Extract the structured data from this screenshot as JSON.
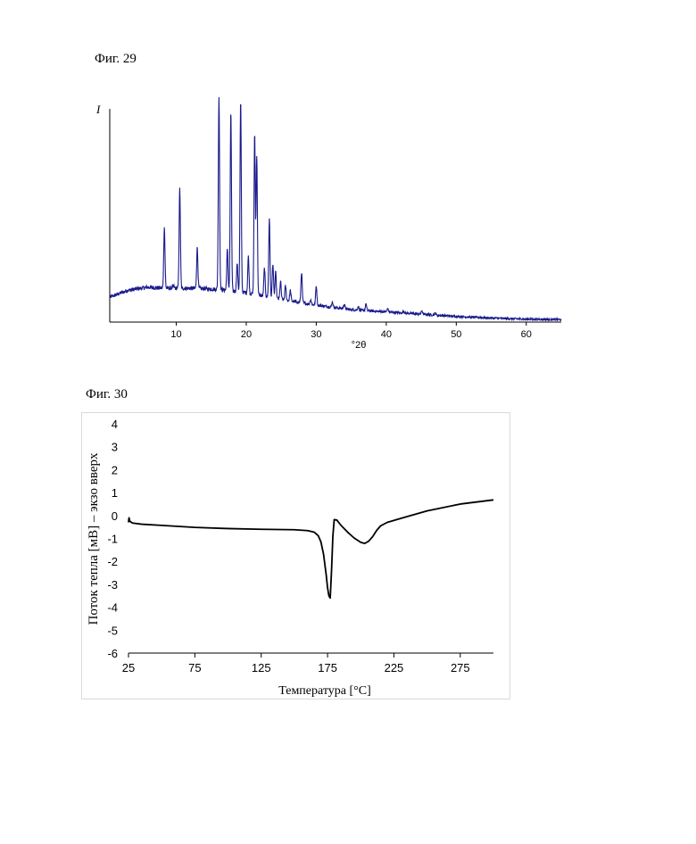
{
  "figures": {
    "fig29": {
      "title": "Фиг. 29"
    },
    "fig30": {
      "title": "Фиг. 30"
    }
  },
  "chart_data": [
    {
      "type": "line",
      "title": "",
      "xlabel": "°2θ",
      "ylabel": "I",
      "xlim": [
        0.5,
        65
      ],
      "ylim": [
        0,
        100
      ],
      "x_ticks": [
        10,
        20,
        30,
        40,
        50,
        60
      ],
      "y_ticks": [],
      "grid": false,
      "color": "#1a1a8c",
      "background": [
        [
          0.5,
          11
        ],
        [
          3,
          14
        ],
        [
          6,
          15.5
        ],
        [
          8,
          15
        ],
        [
          12,
          15
        ],
        [
          16,
          14.5
        ],
        [
          20,
          13
        ],
        [
          25,
          10
        ],
        [
          30,
          7.5
        ],
        [
          35,
          5.5
        ],
        [
          40,
          4.5
        ],
        [
          45,
          3.5
        ],
        [
          50,
          2.5
        ],
        [
          55,
          1.8
        ],
        [
          60,
          1.3
        ],
        [
          65,
          1.1
        ]
      ],
      "peaks": [
        {
          "x": 8.3,
          "y": 42
        },
        {
          "x": 9.6,
          "y": 16
        },
        {
          "x": 10.5,
          "y": 59
        },
        {
          "x": 13.0,
          "y": 33
        },
        {
          "x": 14.0,
          "y": 15
        },
        {
          "x": 16.1,
          "y": 100
        },
        {
          "x": 17.3,
          "y": 32
        },
        {
          "x": 17.8,
          "y": 93
        },
        {
          "x": 18.7,
          "y": 26
        },
        {
          "x": 19.2,
          "y": 98
        },
        {
          "x": 20.3,
          "y": 29
        },
        {
          "x": 21.2,
          "y": 83
        },
        {
          "x": 21.5,
          "y": 74
        },
        {
          "x": 22.6,
          "y": 24
        },
        {
          "x": 23.3,
          "y": 46
        },
        {
          "x": 23.8,
          "y": 26
        },
        {
          "x": 24.2,
          "y": 22
        },
        {
          "x": 24.9,
          "y": 18
        },
        {
          "x": 25.6,
          "y": 16
        },
        {
          "x": 26.3,
          "y": 14
        },
        {
          "x": 27.9,
          "y": 22
        },
        {
          "x": 29.2,
          "y": 10
        },
        {
          "x": 30.0,
          "y": 16
        },
        {
          "x": 32.3,
          "y": 9
        },
        {
          "x": 34.0,
          "y": 8
        },
        {
          "x": 36.0,
          "y": 7
        },
        {
          "x": 37.1,
          "y": 8
        },
        {
          "x": 40.2,
          "y": 6
        },
        {
          "x": 42.5,
          "y": 5
        },
        {
          "x": 45.1,
          "y": 5
        },
        {
          "x": 47.0,
          "y": 4
        }
      ]
    },
    {
      "type": "line",
      "title": "",
      "xlabel": "Температура [°C]",
      "ylabel": "Поток тепла [мВ] – экзо вверх",
      "xlim": [
        25,
        300
      ],
      "ylim": [
        -6,
        4
      ],
      "x_ticks": [
        25,
        75,
        125,
        175,
        225,
        275
      ],
      "y_ticks": [
        4,
        3,
        2,
        1,
        0,
        -1,
        -2,
        -3,
        -4,
        -5,
        -6
      ],
      "grid": false,
      "color": "#000000",
      "x": [
        25,
        25.4,
        26,
        28,
        35,
        50,
        75,
        100,
        125,
        150,
        160,
        165,
        168,
        170,
        172,
        174,
        175,
        176,
        177,
        178,
        179,
        180,
        182,
        185,
        190,
        195,
        200,
        203,
        206,
        209,
        212,
        215,
        220,
        230,
        250,
        275,
        300
      ],
      "y": [
        -0.3,
        -0.1,
        -0.25,
        -0.33,
        -0.38,
        -0.43,
        -0.52,
        -0.57,
        -0.6,
        -0.62,
        -0.66,
        -0.73,
        -0.88,
        -1.15,
        -1.7,
        -2.6,
        -3.15,
        -3.5,
        -3.6,
        -2.4,
        -0.9,
        -0.18,
        -0.2,
        -0.42,
        -0.72,
        -0.98,
        -1.17,
        -1.22,
        -1.12,
        -0.92,
        -0.65,
        -0.45,
        -0.3,
        -0.13,
        0.2,
        0.5,
        0.68
      ]
    }
  ]
}
